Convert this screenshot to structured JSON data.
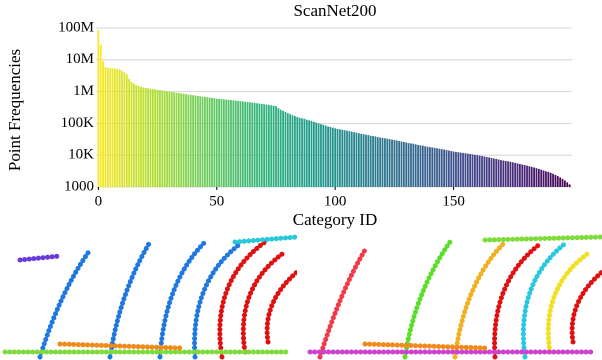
{
  "chart_data": {
    "type": "bar",
    "title": "ScanNet200",
    "x_label": "Category ID",
    "y_label": "Point Frequencies",
    "yscale": "log",
    "grid": true,
    "colormap": "viridis_r",
    "xlim": [
      -1,
      200
    ],
    "xticks": [
      0,
      50,
      100,
      150
    ],
    "ylim": [
      1000,
      100000000
    ],
    "yticks": [
      1000,
      {
        "value": 10000,
        "label": "10K"
      },
      {
        "value": 100000,
        "label": "100K"
      },
      {
        "value": 1000000,
        "label": "1M"
      },
      {
        "value": 10000000,
        "label": "10M"
      },
      {
        "value": 100000000,
        "label": "100M"
      }
    ],
    "x": [
      0,
      1,
      2,
      3,
      4,
      5,
      6,
      7,
      8,
      9,
      10,
      11,
      12,
      13,
      14,
      15,
      16,
      17,
      18,
      19,
      20,
      21,
      22,
      23,
      24,
      25,
      26,
      27,
      28,
      29,
      30,
      31,
      32,
      33,
      34,
      35,
      36,
      37,
      38,
      39,
      40,
      41,
      42,
      43,
      44,
      45,
      46,
      47,
      48,
      49,
      50,
      51,
      52,
      53,
      54,
      55,
      56,
      57,
      58,
      59,
      60,
      61,
      62,
      63,
      64,
      65,
      66,
      67,
      68,
      69,
      70,
      71,
      72,
      73,
      74,
      75,
      76,
      77,
      78,
      79,
      80,
      81,
      82,
      83,
      84,
      85,
      86,
      87,
      88,
      89,
      90,
      91,
      92,
      93,
      94,
      95,
      96,
      97,
      98,
      99,
      100,
      101,
      102,
      103,
      104,
      105,
      106,
      107,
      108,
      109,
      110,
      111,
      112,
      113,
      114,
      115,
      116,
      117,
      118,
      119,
      120,
      121,
      122,
      123,
      124,
      125,
      126,
      127,
      128,
      129,
      130,
      131,
      132,
      133,
      134,
      135,
      136,
      137,
      138,
      139,
      140,
      141,
      142,
      143,
      144,
      145,
      146,
      147,
      148,
      149,
      150,
      151,
      152,
      153,
      154,
      155,
      156,
      157,
      158,
      159,
      160,
      161,
      162,
      163,
      164,
      165,
      166,
      167,
      168,
      169,
      170,
      171,
      172,
      173,
      174,
      175,
      176,
      177,
      178,
      179,
      180,
      181,
      182,
      183,
      184,
      185,
      186,
      187,
      188,
      189,
      190,
      191,
      192,
      193,
      194,
      195,
      196,
      197,
      198,
      199
    ],
    "values": [
      85000000,
      30000000,
      9000000,
      6000000,
      5600000,
      5500000,
      5400000,
      5300000,
      5200000,
      5000000,
      4500000,
      4000000,
      3500000,
      2500000,
      2000000,
      1800000,
      1600000,
      1500000,
      1400000,
      1350000,
      1300000,
      1270000,
      1230000,
      1200000,
      1170000,
      1140000,
      1110000,
      1080000,
      1050000,
      1020000,
      1000000,
      970000,
      950000,
      920000,
      900000,
      880000,
      850000,
      830000,
      810000,
      790000,
      770000,
      750000,
      730000,
      710000,
      690000,
      680000,
      660000,
      650000,
      630000,
      620000,
      600000,
      590000,
      580000,
      570000,
      560000,
      550000,
      540000,
      530000,
      520000,
      510000,
      500000,
      490000,
      480000,
      470000,
      460000,
      450000,
      440000,
      430000,
      420000,
      410000,
      400000,
      390000,
      380000,
      370000,
      360000,
      350000,
      300000,
      270000,
      250000,
      230000,
      210000,
      195000,
      180000,
      170000,
      160000,
      150000,
      145000,
      140000,
      130000,
      125000,
      120000,
      112000,
      105000,
      100000,
      95000,
      90000,
      85000,
      80000,
      77000,
      73000,
      70000,
      67000,
      65000,
      63000,
      61000,
      59000,
      57000,
      55000,
      53000,
      51000,
      49000,
      47000,
      46000,
      44000,
      43000,
      41000,
      40000,
      39000,
      37000,
      36000,
      35000,
      34000,
      33000,
      32000,
      31000,
      30000,
      29000,
      28000,
      27000,
      26000,
      25000,
      24000,
      23500,
      23000,
      22000,
      21000,
      20500,
      20000,
      19000,
      18500,
      18000,
      17500,
      17000,
      16500,
      16000,
      15500,
      15000,
      14500,
      14000,
      13500,
      13000,
      12700,
      12400,
      12100,
      11800,
      11500,
      11200,
      10900,
      10600,
      10300,
      10000,
      9700,
      9400,
      9100,
      8800,
      8500,
      8200,
      7900,
      7600,
      7300,
      7000,
      6800,
      6600,
      6400,
      6200,
      6000,
      5700,
      5500,
      5300,
      5100,
      4900,
      4700,
      4500,
      4300,
      4100,
      3900,
      3700,
      3500,
      3300,
      3100,
      3000,
      2800,
      2600,
      2400,
      2200,
      2000,
      1800,
      1600,
      1400,
      1200
    ]
  }
}
